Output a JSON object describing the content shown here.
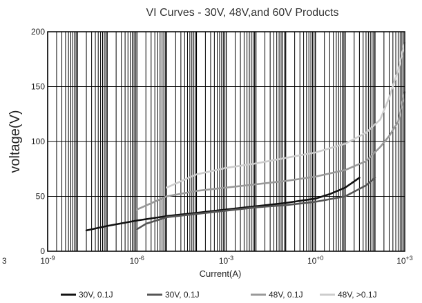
{
  "chart_data": {
    "type": "line",
    "title": "VI  Curves - 30V, 48V,and 60V Products",
    "xlabel": "Current(A)",
    "ylabel": "voltage(V)",
    "x_scale": "log",
    "xlim": [
      1e-09,
      1000
    ],
    "ylim": [
      0,
      200
    ],
    "x_ticks": [
      {
        "value": 1e-09,
        "base": "10",
        "exp": "-9"
      },
      {
        "value": 1e-06,
        "base": "10",
        "exp": "-6"
      },
      {
        "value": 0.001,
        "base": "10",
        "exp": "-3"
      },
      {
        "value": 1,
        "base": "10",
        "exp": "+0"
      },
      {
        "value": 1000,
        "base": "10",
        "exp": "+3"
      }
    ],
    "y_ticks": [
      0,
      50,
      100,
      150,
      200
    ],
    "grid": true,
    "legend_position": "bottom",
    "left_margin_fragment": "3",
    "series": [
      {
        "name": "30V, 0.1J",
        "color": "#111111",
        "points": [
          [
            2e-08,
            19
          ],
          [
            1e-07,
            23
          ],
          [
            1e-06,
            28
          ],
          [
            1e-05,
            32
          ],
          [
            0.0001,
            35
          ],
          [
            0.001,
            38
          ],
          [
            0.01,
            41
          ],
          [
            0.1,
            44
          ],
          [
            1,
            48
          ],
          [
            3,
            52
          ],
          [
            10,
            58
          ],
          [
            30,
            67
          ]
        ]
      },
      {
        "name": "30V, 0.1J",
        "color": "#555555",
        "points": [
          [
            1e-06,
            20
          ],
          [
            2e-06,
            25
          ],
          [
            1e-05,
            31
          ],
          [
            0.0001,
            34
          ],
          [
            0.001,
            37
          ],
          [
            0.01,
            40
          ],
          [
            0.1,
            42
          ],
          [
            1,
            45
          ],
          [
            10,
            50
          ],
          [
            50,
            60
          ],
          [
            100,
            67
          ]
        ]
      },
      {
        "name": "48V, 0.1J",
        "color": "#999999",
        "points": [
          [
            1e-06,
            38
          ],
          [
            1e-05,
            50
          ],
          [
            0.0001,
            55
          ],
          [
            0.001,
            58
          ],
          [
            0.01,
            61
          ],
          [
            0.1,
            64
          ],
          [
            1,
            68
          ],
          [
            10,
            74
          ],
          [
            50,
            82
          ],
          [
            150,
            95
          ],
          [
            300,
            105
          ],
          [
            600,
            118
          ],
          [
            1000,
            145
          ]
        ]
      },
      {
        "name": "48V, >0.1J",
        "color": "#cccccc",
        "points": [
          [
            1e-05,
            58
          ],
          [
            0.0001,
            70
          ],
          [
            0.001,
            76
          ],
          [
            0.01,
            80
          ],
          [
            0.1,
            85
          ],
          [
            1,
            90
          ],
          [
            10,
            98
          ],
          [
            50,
            108
          ],
          [
            150,
            120
          ],
          [
            300,
            140
          ],
          [
            600,
            165
          ],
          [
            1000,
            190
          ]
        ]
      }
    ]
  }
}
